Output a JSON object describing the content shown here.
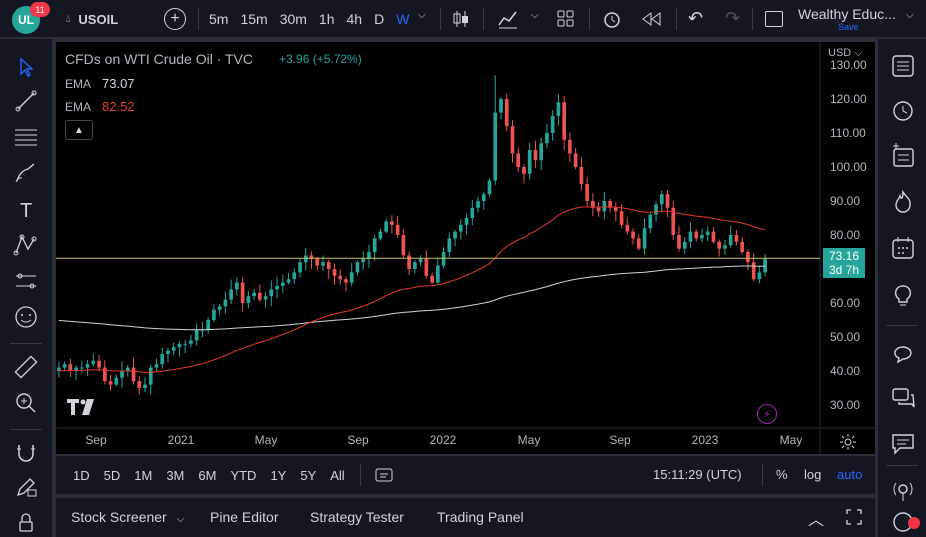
{
  "topbar": {
    "logo_text": "UL",
    "notifications": "11",
    "symbol": "USOIL",
    "intervals": [
      "5m",
      "15m",
      "30m",
      "1h",
      "4h",
      "D",
      "W"
    ],
    "active_interval": "W",
    "account_name": "Wealthy Educ...",
    "save_label": "Save"
  },
  "legend": {
    "title": "CFDs on WTI Crude Oil · TVC",
    "change": "+3.96 (+5.72%)",
    "ema1_label": "EMA",
    "ema1_value": "73.07",
    "ema2_label": "EMA",
    "ema2_value": "82.52"
  },
  "price_axis": {
    "currency": "USD",
    "current_price": "73.16",
    "countdown": "3d 7h"
  },
  "bottom_toolbar": {
    "ranges": [
      "1D",
      "5D",
      "1M",
      "3M",
      "6M",
      "YTD",
      "1Y",
      "5Y",
      "All"
    ],
    "time": "15:11:29 (UTC)",
    "percent": "%",
    "log": "log",
    "auto": "auto"
  },
  "bottom_panel": {
    "tabs": [
      "Stock Screener",
      "Pine Editor",
      "Strategy Tester",
      "Trading Panel"
    ]
  },
  "colors": {
    "up": "#26a69a",
    "down": "#ef5350",
    "ema_fast": "#e53935",
    "ema_slow": "#d1d4dc",
    "accent": "#2962ff"
  },
  "chart_data": {
    "type": "candlestick",
    "title": "CFDs on WTI Crude Oil · TVC",
    "interval": "W",
    "ylim": [
      25,
      135
    ],
    "y_ticks": [
      30,
      40,
      50,
      60,
      70,
      80,
      90,
      100,
      110,
      120,
      130
    ],
    "x_tick_labels": [
      "Sep",
      "2021",
      "May",
      "Sep",
      "2022",
      "May",
      "Sep",
      "2023",
      "May"
    ],
    "closes": [
      41,
      42,
      40,
      41,
      41,
      42,
      43,
      41,
      37,
      36,
      38,
      40,
      41,
      37,
      35,
      36,
      41,
      42,
      45,
      46,
      47,
      48,
      48,
      49,
      52,
      52,
      55,
      58,
      59,
      61,
      64,
      66,
      60,
      62,
      63,
      61,
      62,
      64,
      65,
      66,
      67,
      69,
      72,
      74,
      73,
      71,
      72,
      70,
      68,
      67,
      66,
      69,
      72,
      73,
      75,
      79,
      81,
      84,
      83,
      80,
      74,
      70,
      72,
      73,
      68,
      66,
      71,
      75,
      79,
      81,
      83,
      85,
      88,
      90,
      92,
      96,
      116,
      120,
      112,
      104,
      100,
      98,
      105,
      102,
      107,
      110,
      115,
      119,
      108,
      104,
      100,
      95,
      90,
      88,
      87,
      90,
      88,
      87,
      83,
      81,
      79,
      76,
      82,
      86,
      89,
      92,
      88,
      80,
      76,
      78,
      81,
      79,
      80,
      81,
      78,
      76,
      77,
      80,
      78,
      75,
      72,
      67,
      69,
      73
    ],
    "ema_fast": {
      "label": "EMA",
      "value": 82.52,
      "color": "#e53935"
    },
    "ema_slow": {
      "label": "EMA",
      "value": 73.07,
      "color": "#d1d4dc"
    },
    "last_price": 73.16
  }
}
